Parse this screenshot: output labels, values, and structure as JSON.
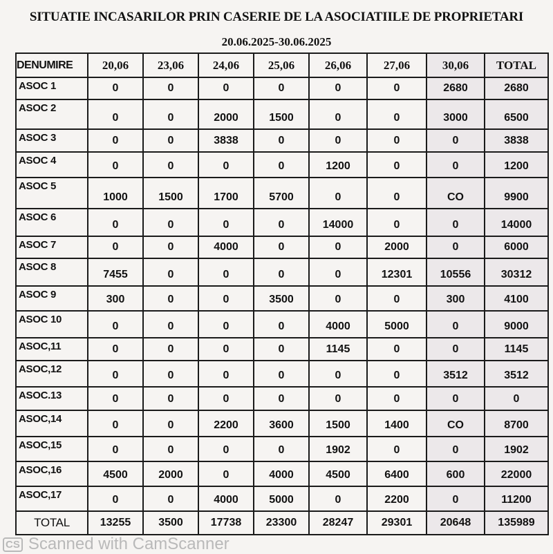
{
  "title": "SITUATIE INCASARILOR  PRIN CASERIE DE LA  ASOCIATIILE  DE PROPRIETARI",
  "subtitle": "20.06.2025-30.06.2025",
  "table": {
    "headers": [
      "DENUMIRE",
      "20,06",
      "23,06",
      "24,06",
      "25,06",
      "26,06",
      "27,06",
      "30,06",
      "TOTAL"
    ],
    "rows": [
      {
        "name": "ASOC 1",
        "values": [
          "0",
          "0",
          "0",
          "0",
          "0",
          "0",
          "2680",
          "2680"
        ]
      },
      {
        "name": "ASOC 2",
        "values": [
          "0",
          "0",
          "2000",
          "1500",
          "0",
          "0",
          "3000",
          "6500"
        ]
      },
      {
        "name": "ASOC 3",
        "values": [
          "0",
          "0",
          "3838",
          "0",
          "0",
          "0",
          "0",
          "3838"
        ]
      },
      {
        "name": "ASOC 4",
        "values": [
          "0",
          "0",
          "0",
          "0",
          "1200",
          "0",
          "0",
          "1200"
        ]
      },
      {
        "name": "ASOC 5",
        "values": [
          "1000",
          "1500",
          "1700",
          "5700",
          "0",
          "0",
          "CO",
          "9900"
        ]
      },
      {
        "name": "ASOC 6",
        "values": [
          "0",
          "0",
          "0",
          "0",
          "14000",
          "0",
          "0",
          "14000"
        ]
      },
      {
        "name": "ASOC 7",
        "values": [
          "0",
          "0",
          "4000",
          "0",
          "0",
          "2000",
          "0",
          "6000"
        ]
      },
      {
        "name": "ASOC 8",
        "values": [
          "7455",
          "0",
          "0",
          "0",
          "0",
          "12301",
          "10556",
          "30312"
        ]
      },
      {
        "name": "ASOC 9",
        "values": [
          "300",
          "0",
          "0",
          "3500",
          "0",
          "0",
          "300",
          "4100"
        ]
      },
      {
        "name": "ASOC 10",
        "values": [
          "0",
          "0",
          "0",
          "0",
          "4000",
          "5000",
          "0",
          "9000"
        ]
      },
      {
        "name": "ASOC,11",
        "values": [
          "0",
          "0",
          "0",
          "0",
          "1145",
          "0",
          "0",
          "1145"
        ]
      },
      {
        "name": "ASOC,12",
        "values": [
          "0",
          "0",
          "0",
          "0",
          "0",
          "0",
          "3512",
          "3512"
        ]
      },
      {
        "name": "ASOC.13",
        "values": [
          "0",
          "0",
          "0",
          "0",
          "0",
          "0",
          "0",
          "0"
        ]
      },
      {
        "name": "ASOC,14",
        "values": [
          "0",
          "0",
          "2200",
          "3600",
          "1500",
          "1400",
          "CO",
          "8700"
        ]
      },
      {
        "name": "ASOC,15",
        "values": [
          "0",
          "0",
          "0",
          "0",
          "1902",
          "0",
          "0",
          "1902"
        ]
      },
      {
        "name": "ASOC,16",
        "values": [
          "4500",
          "2000",
          "0",
          "4000",
          "4500",
          "6400",
          "600",
          "22000"
        ]
      },
      {
        "name": "ASOC,17",
        "values": [
          "0",
          "0",
          "4000",
          "5000",
          "0",
          "2200",
          "0",
          "11200"
        ]
      }
    ],
    "total": {
      "name": "TOTAL",
      "values": [
        "13255",
        "3500",
        "17738",
        "23300",
        "28247",
        "29301",
        "20648",
        "135989"
      ]
    }
  },
  "watermark": {
    "logo": "CS",
    "text": "Scanned with CamScanner"
  }
}
